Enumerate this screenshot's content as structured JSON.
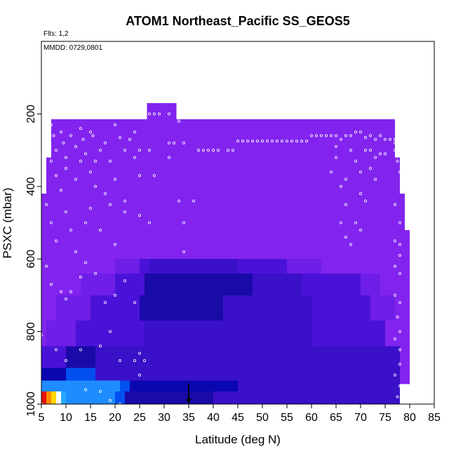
{
  "chart_data": {
    "type": "heatmap",
    "title": "ATOM1 Northeast_Pacific SS_GEOS5",
    "flights_label": "Flts: 1,2",
    "date_label": "MMDD: 0729,0801",
    "xlabel": "Latitude (deg N)",
    "ylabel": "PSXC (mbar)",
    "xlim": [
      5,
      85
    ],
    "ylim": [
      1000,
      0
    ],
    "x_ticks": [
      5,
      10,
      15,
      20,
      25,
      30,
      35,
      40,
      45,
      50,
      55,
      60,
      65,
      70,
      75,
      80,
      85
    ],
    "y_ticks": [
      200,
      400,
      600,
      800,
      1000
    ],
    "marker_arrow": {
      "x": 35,
      "p_from": 970,
      "p_to": 1000
    },
    "colors": {
      "violet": "#8224ee",
      "violet_mid": "#6e1ee6",
      "indigo": "#4a12d8",
      "blue_violet": "#3a10c8",
      "navy": "#1a0aa8",
      "deep_navy": "#0a06b0",
      "blue": "#0050f0",
      "azure": "#1e8cff",
      "sky": "#29a8ff",
      "white_cell": "#ffffff",
      "yellow": "#ffd700",
      "orange": "#ff8c00",
      "red": "#e81010"
    },
    "cells": [
      {
        "x0": 26.5,
        "x1": 32.5,
        "p0": 170,
        "p1": 225,
        "c": "violet"
      },
      {
        "x0": 7,
        "x1": 77,
        "p0": 215,
        "p1": 320,
        "c": "violet"
      },
      {
        "x0": 6,
        "x1": 78,
        "p0": 320,
        "p1": 420,
        "c": "violet"
      },
      {
        "x0": 5,
        "x1": 79,
        "p0": 420,
        "p1": 520,
        "c": "violet"
      },
      {
        "x0": 5,
        "x1": 80,
        "p0": 520,
        "p1": 910,
        "c": "violet"
      },
      {
        "x0": 5,
        "x1": 80,
        "p0": 910,
        "p1": 945,
        "c": "violet"
      },
      {
        "x0": 20,
        "x1": 25,
        "p0": 600,
        "p1": 640,
        "c": "violet_mid"
      },
      {
        "x0": 25,
        "x1": 27,
        "p0": 600,
        "p1": 640,
        "c": "indigo"
      },
      {
        "x0": 27,
        "x1": 45,
        "p0": 600,
        "p1": 640,
        "c": "blue_violet"
      },
      {
        "x0": 45,
        "x1": 55,
        "p0": 600,
        "p1": 640,
        "c": "indigo"
      },
      {
        "x0": 55,
        "x1": 62,
        "p0": 600,
        "p1": 640,
        "c": "violet_mid"
      },
      {
        "x0": 13,
        "x1": 20,
        "p0": 640,
        "p1": 700,
        "c": "violet_mid"
      },
      {
        "x0": 20,
        "x1": 26,
        "p0": 640,
        "p1": 700,
        "c": "indigo"
      },
      {
        "x0": 26,
        "x1": 48,
        "p0": 640,
        "p1": 700,
        "c": "navy"
      },
      {
        "x0": 48,
        "x1": 58,
        "p0": 640,
        "p1": 700,
        "c": "blue_violet"
      },
      {
        "x0": 58,
        "x1": 70,
        "p0": 640,
        "p1": 700,
        "c": "indigo"
      },
      {
        "x0": 70,
        "x1": 74,
        "p0": 640,
        "p1": 700,
        "c": "violet_mid"
      },
      {
        "x0": 8,
        "x1": 15,
        "p0": 700,
        "p1": 770,
        "c": "violet_mid"
      },
      {
        "x0": 15,
        "x1": 25,
        "p0": 700,
        "p1": 770,
        "c": "indigo"
      },
      {
        "x0": 25,
        "x1": 42,
        "p0": 700,
        "p1": 770,
        "c": "navy"
      },
      {
        "x0": 42,
        "x1": 60,
        "p0": 700,
        "p1": 770,
        "c": "blue_violet"
      },
      {
        "x0": 60,
        "x1": 72,
        "p0": 700,
        "p1": 770,
        "c": "indigo"
      },
      {
        "x0": 72,
        "x1": 77,
        "p0": 700,
        "p1": 770,
        "c": "violet_mid"
      },
      {
        "x0": 6,
        "x1": 12,
        "p0": 770,
        "p1": 840,
        "c": "violet_mid"
      },
      {
        "x0": 12,
        "x1": 26,
        "p0": 770,
        "p1": 840,
        "c": "indigo"
      },
      {
        "x0": 26,
        "x1": 60,
        "p0": 770,
        "p1": 840,
        "c": "blue_violet"
      },
      {
        "x0": 60,
        "x1": 75,
        "p0": 770,
        "p1": 840,
        "c": "indigo"
      },
      {
        "x0": 5,
        "x1": 10,
        "p0": 840,
        "p1": 900,
        "c": "indigo"
      },
      {
        "x0": 10,
        "x1": 16,
        "p0": 840,
        "p1": 900,
        "c": "navy"
      },
      {
        "x0": 16,
        "x1": 78,
        "p0": 840,
        "p1": 900,
        "c": "blue_violet"
      },
      {
        "x0": 5,
        "x1": 10,
        "p0": 900,
        "p1": 935,
        "c": "deep_navy"
      },
      {
        "x0": 10,
        "x1": 16,
        "p0": 900,
        "p1": 935,
        "c": "blue"
      },
      {
        "x0": 16,
        "x1": 78,
        "p0": 900,
        "p1": 935,
        "c": "blue_violet"
      },
      {
        "x0": 5,
        "x1": 21,
        "p0": 935,
        "p1": 965,
        "c": "azure"
      },
      {
        "x0": 21,
        "x1": 23,
        "p0": 935,
        "p1": 965,
        "c": "blue"
      },
      {
        "x0": 23,
        "x1": 45,
        "p0": 935,
        "p1": 965,
        "c": "deep_navy"
      },
      {
        "x0": 45,
        "x1": 78,
        "p0": 935,
        "p1": 965,
        "c": "blue_violet"
      },
      {
        "x0": 5,
        "x1": 6,
        "p0": 965,
        "p1": 1000,
        "c": "red"
      },
      {
        "x0": 6,
        "x1": 7,
        "p0": 965,
        "p1": 1000,
        "c": "orange"
      },
      {
        "x0": 7,
        "x1": 8,
        "p0": 965,
        "p1": 1000,
        "c": "yellow"
      },
      {
        "x0": 8,
        "x1": 9,
        "p0": 965,
        "p1": 1000,
        "c": "white_cell"
      },
      {
        "x0": 9,
        "x1": 10,
        "p0": 965,
        "p1": 1000,
        "c": "sky"
      },
      {
        "x0": 10,
        "x1": 20,
        "p0": 965,
        "p1": 1000,
        "c": "azure"
      },
      {
        "x0": 20,
        "x1": 22,
        "p0": 965,
        "p1": 1000,
        "c": "blue"
      },
      {
        "x0": 22,
        "x1": 40,
        "p0": 965,
        "p1": 1000,
        "c": "navy"
      },
      {
        "x0": 40,
        "x1": 78,
        "p0": 965,
        "p1": 1000,
        "c": "blue_violet"
      }
    ],
    "points": [
      [
        7,
        230
      ],
      [
        7.5,
        260
      ],
      [
        8,
        300
      ],
      [
        9,
        250
      ],
      [
        9.5,
        280
      ],
      [
        10,
        320
      ],
      [
        11,
        260
      ],
      [
        12,
        290
      ],
      [
        13,
        240
      ],
      [
        13.5,
        270
      ],
      [
        14,
        310
      ],
      [
        15,
        250
      ],
      [
        15.5,
        260
      ],
      [
        16,
        330
      ],
      [
        17,
        300
      ],
      [
        18,
        280
      ],
      [
        19,
        330
      ],
      [
        20,
        230
      ],
      [
        21,
        265
      ],
      [
        22,
        300
      ],
      [
        23,
        270
      ],
      [
        24,
        250
      ],
      [
        25,
        300
      ],
      [
        7,
        330
      ],
      [
        8,
        370
      ],
      [
        9,
        410
      ],
      [
        10,
        350
      ],
      [
        12,
        380
      ],
      [
        13,
        330
      ],
      [
        15,
        360
      ],
      [
        16,
        400
      ],
      [
        18,
        420
      ],
      [
        20,
        380
      ],
      [
        22,
        440
      ],
      [
        24,
        320
      ],
      [
        25,
        370
      ],
      [
        27,
        300
      ],
      [
        28,
        370
      ],
      [
        31,
        320
      ],
      [
        6,
        450
      ],
      [
        7,
        500
      ],
      [
        8,
        550
      ],
      [
        10,
        470
      ],
      [
        11,
        520
      ],
      [
        12,
        580
      ],
      [
        14,
        500
      ],
      [
        15,
        460
      ],
      [
        17,
        520
      ],
      [
        19,
        450
      ],
      [
        20,
        560
      ],
      [
        22,
        470
      ],
      [
        25,
        480
      ],
      [
        27,
        500
      ],
      [
        6,
        620
      ],
      [
        7,
        670
      ],
      [
        9,
        690
      ],
      [
        10,
        710
      ],
      [
        11,
        690
      ],
      [
        13,
        650
      ],
      [
        14,
        610
      ],
      [
        16,
        640
      ],
      [
        18,
        720
      ],
      [
        20,
        700
      ],
      [
        22,
        660
      ],
      [
        24,
        720
      ],
      [
        5,
        810
      ],
      [
        8,
        850
      ],
      [
        10,
        880
      ],
      [
        13,
        850
      ],
      [
        17,
        840
      ],
      [
        19,
        800
      ],
      [
        21,
        880
      ],
      [
        24,
        880
      ],
      [
        25,
        860
      ],
      [
        25,
        920
      ],
      [
        26,
        880
      ],
      [
        14,
        960
      ],
      [
        17,
        965
      ],
      [
        19,
        990
      ],
      [
        21,
        1000
      ],
      [
        5,
        1000
      ],
      [
        27,
        200
      ],
      [
        28,
        200
      ],
      [
        29,
        200
      ],
      [
        31,
        200
      ],
      [
        33,
        220
      ],
      [
        36,
        440
      ],
      [
        34,
        500
      ],
      [
        34,
        580
      ],
      [
        33,
        440
      ],
      [
        31,
        280
      ],
      [
        32,
        280
      ],
      [
        34,
        280
      ],
      [
        37,
        300
      ],
      [
        38,
        300
      ],
      [
        39,
        300
      ],
      [
        40,
        300
      ],
      [
        41,
        300
      ],
      [
        43,
        300
      ],
      [
        44,
        300
      ],
      [
        45,
        275
      ],
      [
        46,
        275
      ],
      [
        47,
        275
      ],
      [
        48,
        275
      ],
      [
        49,
        275
      ],
      [
        50,
        275
      ],
      [
        51,
        275
      ],
      [
        52,
        275
      ],
      [
        53,
        275
      ],
      [
        54,
        275
      ],
      [
        55,
        275
      ],
      [
        56,
        275
      ],
      [
        57,
        275
      ],
      [
        58,
        275
      ],
      [
        59,
        275
      ],
      [
        60,
        260
      ],
      [
        61,
        260
      ],
      [
        62,
        260
      ],
      [
        63,
        260
      ],
      [
        64,
        260
      ],
      [
        65,
        260
      ],
      [
        66,
        270
      ],
      [
        67,
        260
      ],
      [
        68,
        260
      ],
      [
        69,
        250
      ],
      [
        70,
        250
      ],
      [
        71,
        265
      ],
      [
        72,
        260
      ],
      [
        73,
        270
      ],
      [
        74,
        260
      ],
      [
        75,
        270
      ],
      [
        76,
        270
      ],
      [
        77,
        270
      ],
      [
        64,
        360
      ],
      [
        65,
        290
      ],
      [
        65,
        320
      ],
      [
        66,
        400
      ],
      [
        67,
        380
      ],
      [
        67,
        450
      ],
      [
        68,
        300
      ],
      [
        69,
        330
      ],
      [
        70,
        360
      ],
      [
        70,
        420
      ],
      [
        71,
        300
      ],
      [
        72,
        300
      ],
      [
        72,
        350
      ],
      [
        73,
        320
      ],
      [
        74,
        310
      ],
      [
        66,
        500
      ],
      [
        67,
        540
      ],
      [
        68,
        560
      ],
      [
        69,
        500
      ],
      [
        70,
        520
      ],
      [
        71,
        440
      ],
      [
        73,
        380
      ],
      [
        75,
        310
      ],
      [
        77,
        280
      ],
      [
        77,
        300
      ],
      [
        77.5,
        330
      ],
      [
        78,
        360
      ],
      [
        77,
        450
      ],
      [
        78,
        500
      ],
      [
        77,
        550
      ],
      [
        78,
        560
      ],
      [
        78,
        590
      ],
      [
        77,
        620
      ],
      [
        78,
        640
      ],
      [
        77,
        700
      ],
      [
        78,
        720
      ],
      [
        77.5,
        760
      ],
      [
        78,
        800
      ],
      [
        77,
        820
      ],
      [
        78,
        850
      ],
      [
        78,
        890
      ],
      [
        77,
        920
      ],
      [
        78,
        950
      ],
      [
        77.5,
        980
      ]
    ]
  }
}
